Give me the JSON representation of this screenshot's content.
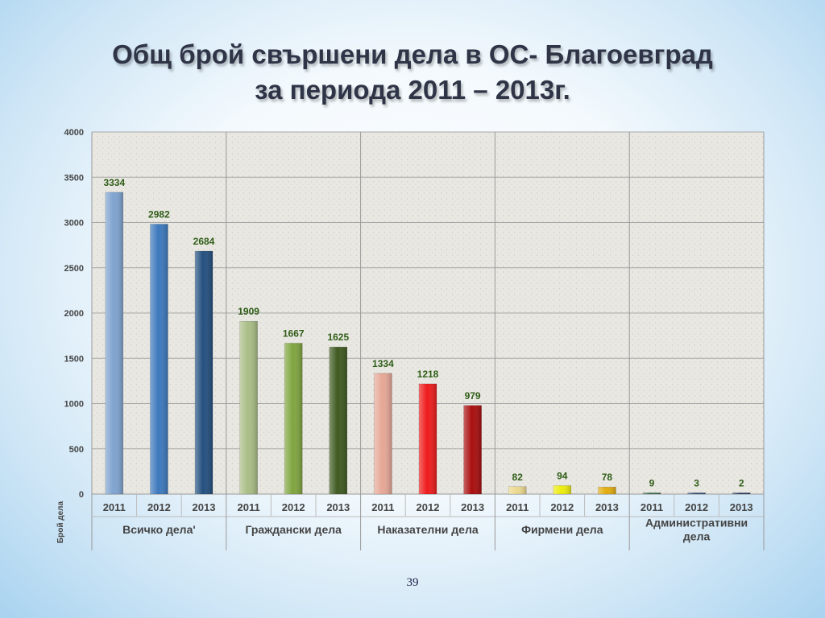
{
  "slide": {
    "title_line1": "Общ брой свършени дела в ОС- Благоевград",
    "title_line2": "за периода 2011 – 2013г.",
    "page_number": "39"
  },
  "chart_data": {
    "type": "bar",
    "title": "",
    "ylabel": "Брой дела",
    "ylim": [
      0,
      4000
    ],
    "yticks": [
      0,
      500,
      1000,
      1500,
      2000,
      2500,
      3000,
      3500,
      4000
    ],
    "grid": true,
    "groups": [
      {
        "name": "Всичко дела'",
        "bars": [
          {
            "year": "2011",
            "value": 3334,
            "color": "#7ea3cf"
          },
          {
            "year": "2012",
            "value": 2982,
            "color": "#3d79bd"
          },
          {
            "year": "2013",
            "value": 2684,
            "color": "#24507f"
          }
        ]
      },
      {
        "name": "Граждански дела",
        "bars": [
          {
            "year": "2011",
            "value": 1909,
            "color": "#a9bd86"
          },
          {
            "year": "2012",
            "value": 1667,
            "color": "#80a53f"
          },
          {
            "year": "2013",
            "value": 1625,
            "color": "#3f5a21"
          }
        ]
      },
      {
        "name": "Наказателни дела",
        "bars": [
          {
            "year": "2011",
            "value": 1334,
            "color": "#e6a796"
          },
          {
            "year": "2012",
            "value": 1218,
            "color": "#ee1c1c"
          },
          {
            "year": "2013",
            "value": 979,
            "color": "#a90f0f"
          }
        ]
      },
      {
        "name": "Фирмени дела",
        "bars": [
          {
            "year": "2011",
            "value": 82,
            "color": "#ecd98e"
          },
          {
            "year": "2012",
            "value": 94,
            "color": "#ecec10"
          },
          {
            "year": "2013",
            "value": 78,
            "color": "#e2ad10"
          }
        ]
      },
      {
        "name": "Административни дела",
        "bars": [
          {
            "year": "2011",
            "value": 9,
            "color": "#2f6a45"
          },
          {
            "year": "2012",
            "value": 3,
            "color": "#2e4a7a"
          },
          {
            "year": "2013",
            "value": 2,
            "color": "#24355e"
          }
        ]
      }
    ],
    "colors": {
      "value_label": "#2f5d17",
      "plot_background": "#e8e7e1",
      "gridline": "#a8a8a8",
      "axis_text": "#444444"
    }
  }
}
